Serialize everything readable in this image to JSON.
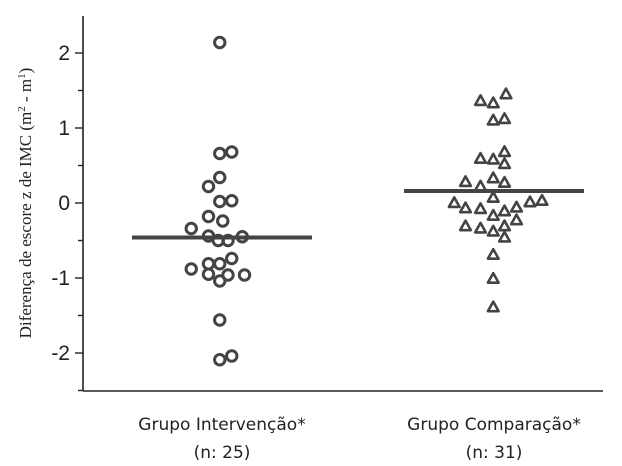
{
  "chart_data": {
    "type": "scatter",
    "ylabel_main": "Diferença de escore z de IMC (m",
    "ylabel_sup1": "2",
    "ylabel_mid": " - m",
    "ylabel_sup2": "1",
    "ylabel_end": ")",
    "ylim": [
      -2.5,
      2.5
    ],
    "yticks": [
      -2,
      -1,
      0,
      1,
      2
    ],
    "ytick_labels": [
      "-2",
      "-1",
      "0",
      "1",
      "2"
    ],
    "groups": [
      {
        "label_line1": "Grupo Intervenção*",
        "label_line2": "(n: 25)",
        "marker": "circle",
        "median": -0.46,
        "points": [
          {
            "x": -0.03,
            "y": 2.14
          },
          {
            "x": -0.03,
            "y": 0.66
          },
          {
            "x": 0.13,
            "y": 0.68
          },
          {
            "x": -0.03,
            "y": 0.34
          },
          {
            "x": -0.18,
            "y": 0.22
          },
          {
            "x": -0.03,
            "y": 0.02
          },
          {
            "x": 0.13,
            "y": 0.03
          },
          {
            "x": -0.18,
            "y": -0.18
          },
          {
            "x": 0.01,
            "y": -0.24
          },
          {
            "x": -0.41,
            "y": -0.34
          },
          {
            "x": -0.18,
            "y": -0.44
          },
          {
            "x": -0.05,
            "y": -0.5
          },
          {
            "x": 0.08,
            "y": -0.5
          },
          {
            "x": 0.27,
            "y": -0.45
          },
          {
            "x": 0.13,
            "y": -0.74
          },
          {
            "x": -0.18,
            "y": -0.81
          },
          {
            "x": -0.03,
            "y": -0.81
          },
          {
            "x": -0.41,
            "y": -0.88
          },
          {
            "x": -0.18,
            "y": -0.95
          },
          {
            "x": 0.08,
            "y": -0.96
          },
          {
            "x": 0.3,
            "y": -0.96
          },
          {
            "x": -0.03,
            "y": -1.04
          },
          {
            "x": -0.03,
            "y": -1.56
          },
          {
            "x": 0.13,
            "y": -2.04
          },
          {
            "x": -0.03,
            "y": -2.09
          }
        ]
      },
      {
        "label_line1": "Grupo Comparação*",
        "label_line2": "(n: 31)",
        "marker": "triangle",
        "median": 0.16,
        "points": [
          {
            "x": -0.18,
            "y": 1.36
          },
          {
            "x": -0.01,
            "y": 1.33
          },
          {
            "x": 0.16,
            "y": 1.45
          },
          {
            "x": -0.01,
            "y": 1.1
          },
          {
            "x": 0.14,
            "y": 1.12
          },
          {
            "x": 0.14,
            "y": 0.68
          },
          {
            "x": -0.18,
            "y": 0.59
          },
          {
            "x": -0.01,
            "y": 0.58
          },
          {
            "x": 0.14,
            "y": 0.52
          },
          {
            "x": -0.38,
            "y": 0.28
          },
          {
            "x": -0.01,
            "y": 0.33
          },
          {
            "x": 0.14,
            "y": 0.27
          },
          {
            "x": -0.18,
            "y": 0.22
          },
          {
            "x": -0.01,
            "y": 0.07
          },
          {
            "x": -0.53,
            "y": 0.0
          },
          {
            "x": -0.38,
            "y": -0.07
          },
          {
            "x": -0.18,
            "y": -0.08
          },
          {
            "x": -0.01,
            "y": -0.17
          },
          {
            "x": 0.14,
            "y": -0.11
          },
          {
            "x": 0.3,
            "y": -0.06
          },
          {
            "x": 0.48,
            "y": 0.01
          },
          {
            "x": 0.64,
            "y": 0.03
          },
          {
            "x": -0.38,
            "y": -0.31
          },
          {
            "x": -0.18,
            "y": -0.34
          },
          {
            "x": -0.01,
            "y": -0.38
          },
          {
            "x": 0.14,
            "y": -0.31
          },
          {
            "x": 0.14,
            "y": -0.46
          },
          {
            "x": -0.01,
            "y": -0.69
          },
          {
            "x": -0.01,
            "y": -1.01
          },
          {
            "x": -0.01,
            "y": -1.39
          },
          {
            "x": 0.3,
            "y": -0.23
          }
        ]
      }
    ]
  }
}
